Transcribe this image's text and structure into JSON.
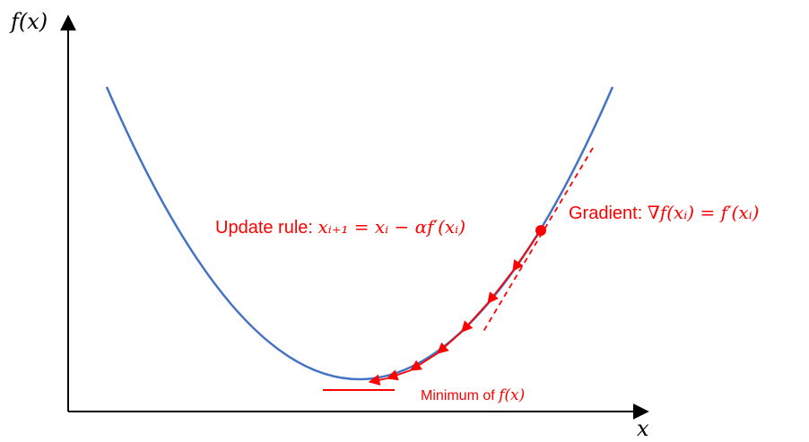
{
  "axes": {
    "y_label": "f(x)",
    "x_label": "x"
  },
  "annotations": {
    "update_rule": {
      "prefix": "Update rule: ",
      "formula": "xᵢ₊₁ = xᵢ − αf′(xᵢ)"
    },
    "gradient": {
      "prefix": "Gradient: ",
      "formula": "∇f(xᵢ) = f′(xᵢ)"
    },
    "minimum": {
      "prefix": "Minimum of ",
      "formula": "f(x)"
    }
  },
  "colors": {
    "curve": "#4472C4",
    "annotation": "#FF0000",
    "axis": "#000000"
  }
}
